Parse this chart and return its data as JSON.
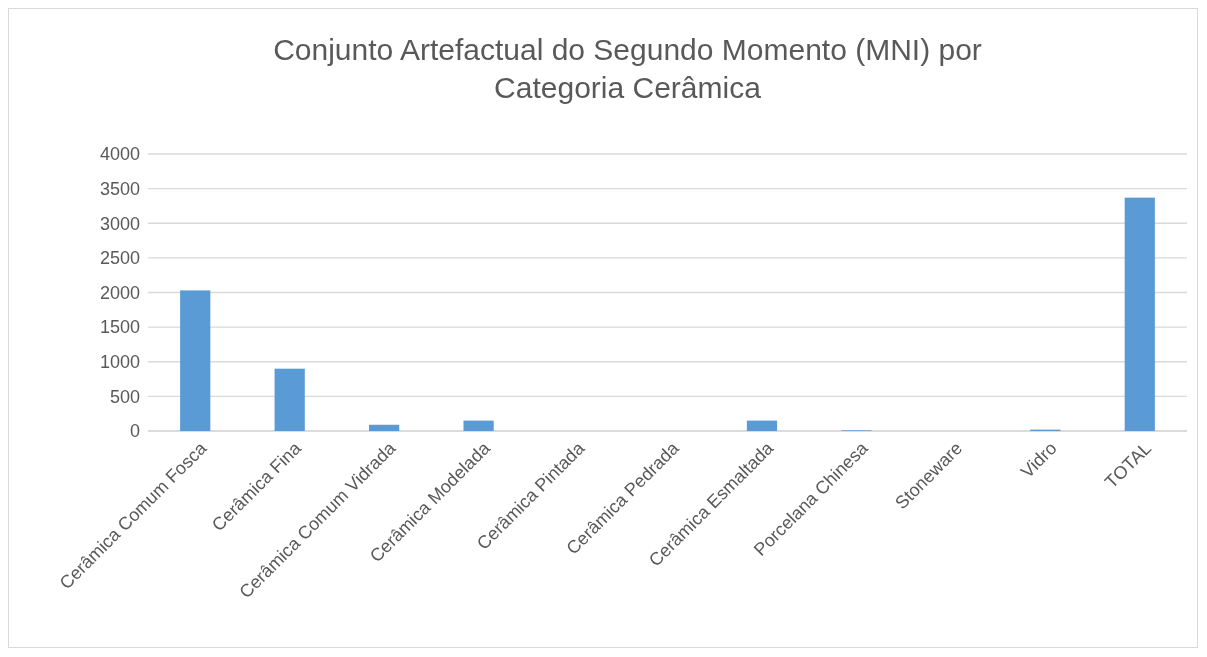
{
  "chart_data": {
    "type": "bar",
    "title": "Conjunto Artefactual do Segundo Momento (MNI) por Categoria Cerâmica",
    "categories": [
      "Cerâmica Comum Fosca",
      "Cerâmica Fina",
      "Cerâmica Comum Vidrada",
      "Cerâmica Modelada",
      "Cerâmica Pintada",
      "Cerâmica Pedrada",
      "Cerâmica Esmaltada",
      "Porcelana Chinesa",
      "Stoneware",
      "Vidro",
      "TOTAL"
    ],
    "values": [
      2030,
      900,
      90,
      150,
      0,
      0,
      150,
      10,
      0,
      20,
      3370
    ],
    "color": "#5b9bd5",
    "ylim": [
      0,
      4000
    ],
    "yticks": [
      0,
      500,
      1000,
      1500,
      2000,
      2500,
      3000,
      3500,
      4000
    ],
    "grid": "y"
  }
}
